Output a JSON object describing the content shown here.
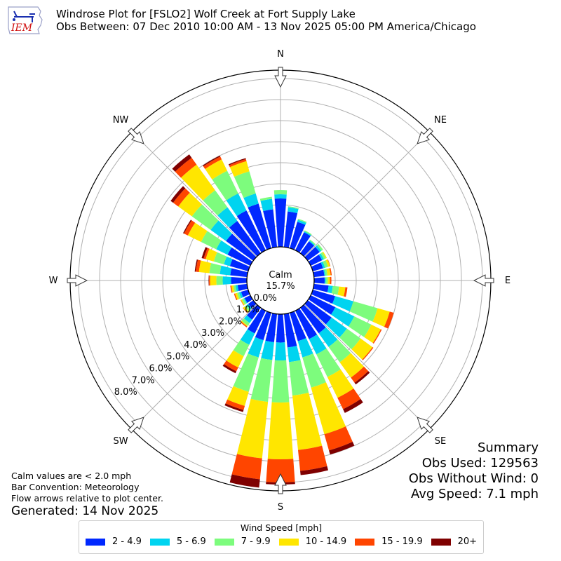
{
  "title": {
    "line1": "Windrose Plot for [FSLO2] Wolf Creek at Fort Supply Lake",
    "line2": "Obs Between: 07 Dec 2010 10:00 AM - 13 Nov 2025 05:00 PM America/Chicago"
  },
  "logo": {
    "text": "IEM"
  },
  "center": {
    "label": "Calm",
    "value": "15.7%"
  },
  "compass": {
    "N": "N",
    "NE": "NE",
    "E": "E",
    "SE": "SE",
    "S": "S",
    "SW": "SW",
    "W": "W",
    "NW": "NW"
  },
  "notes": {
    "calm": "Calm values are < 2.0 mph",
    "convention": "Bar Convention: Meteorology",
    "arrows": "Flow arrows relative to plot center.",
    "generated": "Generated: 14 Nov 2025"
  },
  "summary": {
    "title": "Summary",
    "obs_used": "Obs Used: 129563",
    "obs_without_wind": "Obs Without Wind: 0",
    "avg_speed": "Avg Speed: 7.1 mph"
  },
  "legend": {
    "title": "Wind Speed [mph]",
    "items": [
      {
        "label": "2 - 4.9",
        "color": "#0028ff"
      },
      {
        "label": "5 - 6.9",
        "color": "#00d4f0"
      },
      {
        "label": "7 - 9.9",
        "color": "#7dfc7d"
      },
      {
        "label": "10 - 14.9",
        "color": "#ffe600"
      },
      {
        "label": "15 - 19.9",
        "color": "#ff4500"
      },
      {
        "label": "20+",
        "color": "#7f0000"
      }
    ]
  },
  "chart_data": {
    "type": "windrose",
    "title": "Windrose Plot for [FSLO2] Wolf Creek at Fort Supply Lake",
    "subtitle": "Obs Between: 07 Dec 2010 10:00 AM - 13 Nov 2025 05:00 PM America/Chicago",
    "radial_ticks": [
      "0.0%",
      "1.0%",
      "2.0%",
      "3.0%",
      "4.0%",
      "5.0%",
      "6.0%",
      "7.0%",
      "8.0%"
    ],
    "radial_range": [
      0,
      8.4
    ],
    "calm_percent": 15.7,
    "bins": [
      "2 - 4.9",
      "5 - 6.9",
      "7 - 9.9",
      "10 - 14.9",
      "15 - 19.9",
      "20+"
    ],
    "directions_deg": [
      0,
      10,
      20,
      30,
      40,
      50,
      60,
      70,
      80,
      90,
      100,
      110,
      120,
      130,
      140,
      150,
      160,
      170,
      180,
      190,
      200,
      210,
      220,
      230,
      240,
      250,
      260,
      270,
      280,
      290,
      300,
      310,
      320,
      330,
      340,
      350
    ],
    "cumulative_percent": [
      [
        2.3,
        2.5,
        2.7,
        2.7,
        2.7,
        2.7
      ],
      [
        1.7,
        1.9,
        1.95,
        1.95,
        1.95,
        1.95
      ],
      [
        1.3,
        1.4,
        1.45,
        1.45,
        1.45,
        1.45
      ],
      [
        0.95,
        1.0,
        1.05,
        1.05,
        1.05,
        1.05
      ],
      [
        0.7,
        0.75,
        0.8,
        0.8,
        0.8,
        0.8
      ],
      [
        0.7,
        0.8,
        0.9,
        0.9,
        0.9,
        0.9
      ],
      [
        0.6,
        0.7,
        0.8,
        0.85,
        0.85,
        0.85
      ],
      [
        0.5,
        0.6,
        0.75,
        0.85,
        0.87,
        0.87
      ],
      [
        0.5,
        0.55,
        0.65,
        0.8,
        0.85,
        0.85
      ],
      [
        0.5,
        0.55,
        0.65,
        0.75,
        0.82,
        0.82
      ],
      [
        0.7,
        0.9,
        1.2,
        1.5,
        1.6,
        1.6
      ],
      [
        1.1,
        2.0,
        3.2,
        3.8,
        4.0,
        4.0
      ],
      [
        1.3,
        2.3,
        3.2,
        3.7,
        3.75,
        3.75
      ],
      [
        1.4,
        2.3,
        3.1,
        3.8,
        3.85,
        3.85
      ],
      [
        1.5,
        2.3,
        3.2,
        4.1,
        4.4,
        4.5
      ],
      [
        1.5,
        2.3,
        3.5,
        4.6,
        5.2,
        5.4
      ],
      [
        1.4,
        2.2,
        3.7,
        6.0,
        6.8,
        7.0
      ],
      [
        1.6,
        2.3,
        3.9,
        6.5,
        7.5,
        7.7
      ],
      [
        1.35,
        2.2,
        4.2,
        6.9,
        8.0,
        8.1
      ],
      [
        1.35,
        2.2,
        4.2,
        6.9,
        7.9,
        8.3
      ],
      [
        1.35,
        2.2,
        3.9,
        4.6,
        4.8,
        4.9
      ],
      [
        1.2,
        1.8,
        2.4,
        3.0,
        3.2,
        3.3
      ],
      [
        0.7,
        0.9,
        1.05,
        1.1,
        1.15,
        1.15
      ],
      [
        0.3,
        0.4,
        0.5,
        0.6,
        0.62,
        0.62
      ],
      [
        0.3,
        0.35,
        0.45,
        0.5,
        0.52,
        0.52
      ],
      [
        0.35,
        0.45,
        0.55,
        0.65,
        0.7,
        0.7
      ],
      [
        0.45,
        0.55,
        0.65,
        0.75,
        0.8,
        0.8
      ],
      [
        0.75,
        1.15,
        1.45,
        1.75,
        1.8,
        1.82
      ],
      [
        0.8,
        1.3,
        1.8,
        2.3,
        2.45,
        2.5
      ],
      [
        0.9,
        1.2,
        1.7,
        2.1,
        2.2,
        2.3
      ],
      [
        1.2,
        1.8,
        2.6,
        3.3,
        3.5,
        3.55
      ],
      [
        1.6,
        2.5,
        3.6,
        4.4,
        4.7,
        4.85
      ],
      [
        1.9,
        2.7,
        3.7,
        5.2,
        5.6,
        5.8
      ],
      [
        2.1,
        3.0,
        4.2,
        4.8,
        4.95,
        5.0
      ],
      [
        2.2,
        2.7,
        3.8,
        4.3,
        4.4,
        4.45
      ],
      [
        1.8,
        2.3,
        2.4,
        2.4,
        2.4,
        2.4
      ]
    ],
    "legend_title": "Wind Speed [mph]",
    "legend_position": "bottom",
    "grid": true
  }
}
